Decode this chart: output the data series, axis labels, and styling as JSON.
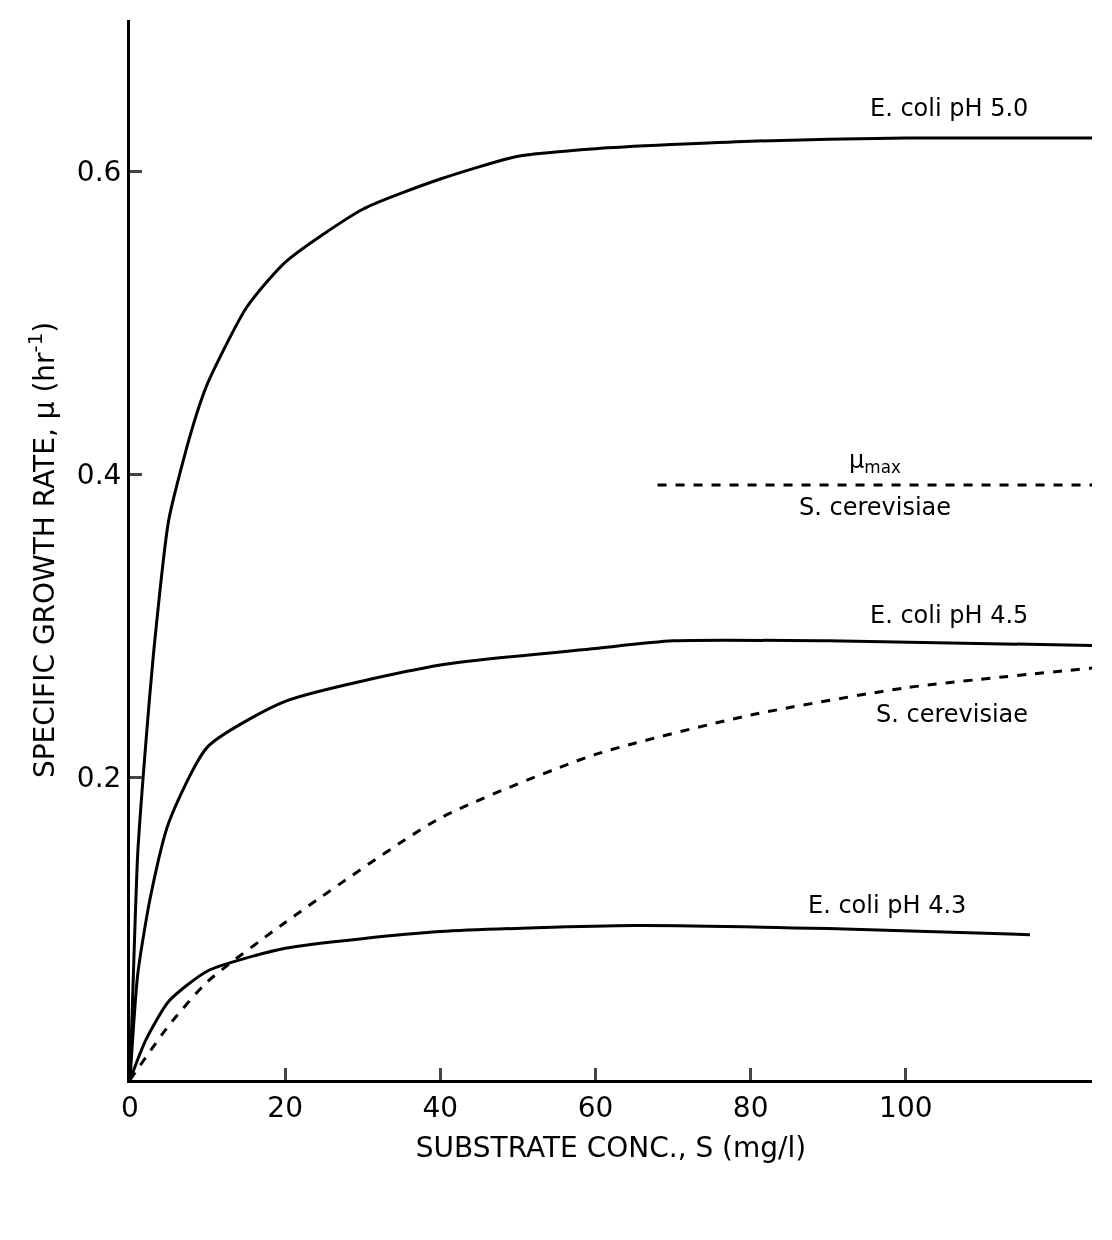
{
  "chart_data": {
    "type": "line",
    "xlabel": "SUBSTRATE CONC., S (mg/l)",
    "ylabel": "SPECIFIC GROWTH RATE, μ (hr$^{-1}$)",
    "xlim": [
      0,
      124
    ],
    "ylim": [
      0,
      0.7
    ],
    "xticks": [
      0,
      20,
      40,
      60,
      80,
      100
    ],
    "yticks": [
      {
        "value": 0,
        "label": null
      },
      0.2,
      0.4,
      0.6
    ],
    "legend": false,
    "marker": "none",
    "series": [
      {
        "name": "E. coli pH 5.0",
        "color": "#000000",
        "line_style": "solid",
        "x": [
          0,
          0.5,
          1,
          2,
          3,
          5,
          8,
          10,
          15,
          20,
          30,
          40,
          50,
          60,
          80,
          100,
          124
        ],
        "values": [
          0,
          0.08,
          0.15,
          0.22,
          0.28,
          0.37,
          0.43,
          0.46,
          0.51,
          0.54,
          0.575,
          0.595,
          0.61,
          0.615,
          0.62,
          0.622,
          0.622
        ]
      },
      {
        "name": "E. coli pH 4.5",
        "color": "#000000",
        "line_style": "solid",
        "x": [
          0,
          1,
          2.6,
          5,
          10,
          20,
          40,
          60,
          70,
          90,
          124
        ],
        "values": [
          0,
          0.07,
          0.12,
          0.17,
          0.22,
          0.25,
          0.274,
          0.285,
          0.29,
          0.29,
          0.287
        ]
      },
      {
        "name": "E. coli pH 4.3",
        "color": "#000000",
        "line_style": "solid",
        "x": [
          0,
          2,
          5,
          10,
          20,
          40,
          65,
          90,
          116
        ],
        "values": [
          0,
          0.026,
          0.052,
          0.072,
          0.087,
          0.098,
          0.102,
          0.1,
          0.096
        ]
      },
      {
        "name": "S. cerevisiae",
        "color": "#000000",
        "line_style": "dashed",
        "x": [
          0,
          5,
          10,
          20,
          40,
          60,
          80,
          100,
          124
        ],
        "values": [
          0,
          0.036,
          0.065,
          0.104,
          0.173,
          0.215,
          0.241,
          0.259,
          0.272
        ]
      },
      {
        "color": "#000000",
        "line_style": "dashed",
        "x": [
          68,
          124
        ],
        "values": [
          0.393,
          0.393
        ]
      }
    ],
    "annotations": [
      {
        "text": "μ$_{max}$",
        "x": 96,
        "y": 0.393
      },
      {
        "text": "S. cerevisiae",
        "x": 96,
        "y": 0.393
      }
    ]
  }
}
